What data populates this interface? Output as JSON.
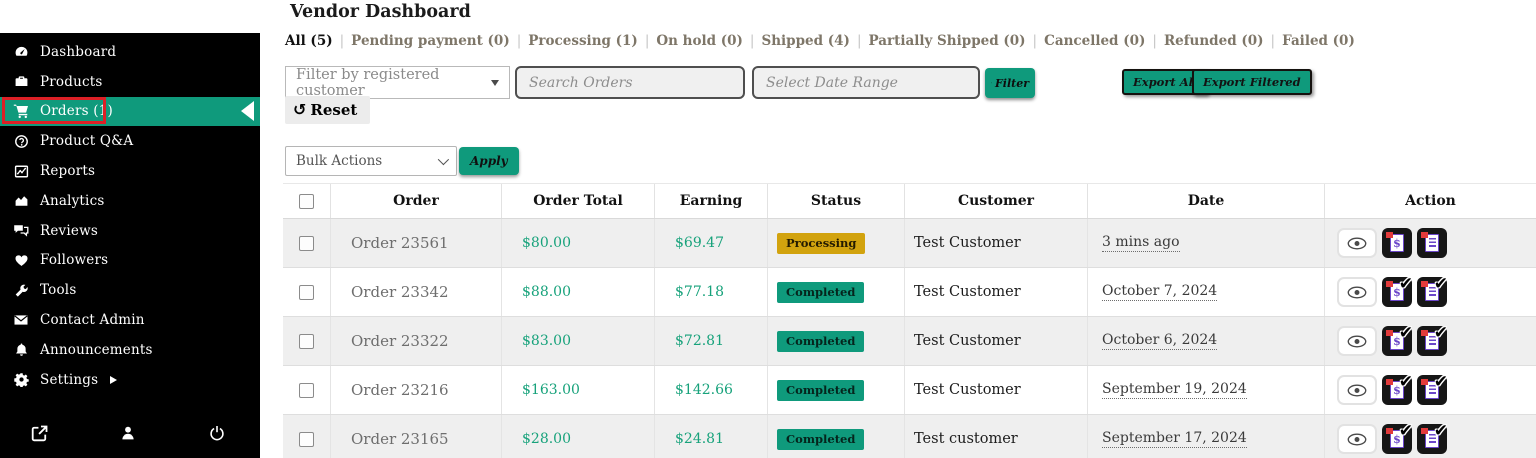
{
  "header": {
    "title": "Vendor Dashboard"
  },
  "colors": {
    "accent": "#0f9a7c",
    "highlight_red": "#dd2026",
    "processing_badge_bg": "#d2a30e",
    "completed_badge_bg": "#0f9a7c",
    "price_text": "#17a27b",
    "sidebar_bg": "#000000"
  },
  "sidebar": {
    "items": [
      {
        "label": "Dashboard",
        "icon": "dashboard-icon"
      },
      {
        "label": "Products",
        "icon": "products-icon"
      },
      {
        "label": "Orders (1)",
        "icon": "orders-cart-icon",
        "active": true
      },
      {
        "label": "Product Q&A",
        "icon": "question-circle-icon"
      },
      {
        "label": "Reports",
        "icon": "reports-chart-icon"
      },
      {
        "label": "Analytics",
        "icon": "analytics-area-icon"
      },
      {
        "label": "Reviews",
        "icon": "reviews-comments-icon"
      },
      {
        "label": "Followers",
        "icon": "heart-icon"
      },
      {
        "label": "Tools",
        "icon": "wrench-icon"
      },
      {
        "label": "Contact Admin",
        "icon": "envelope-icon"
      },
      {
        "label": "Announcements",
        "icon": "bell-icon"
      },
      {
        "label": "Settings",
        "icon": "gear-icon",
        "has_submenu": true
      }
    ],
    "footer_icons": [
      {
        "name": "external-link-icon"
      },
      {
        "name": "user-icon"
      },
      {
        "name": "power-icon"
      }
    ]
  },
  "tabs": [
    {
      "label": "All (5)",
      "active": true
    },
    {
      "label": "Pending payment (0)"
    },
    {
      "label": "Processing (1)"
    },
    {
      "label": "On hold (0)"
    },
    {
      "label": "Shipped (4)"
    },
    {
      "label": "Partially Shipped (0)"
    },
    {
      "label": "Cancelled (0)"
    },
    {
      "label": "Refunded (0)"
    },
    {
      "label": "Failed (0)"
    }
  ],
  "filters": {
    "customer_dropdown_value": "Filter by registered customer",
    "search_placeholder": "Search Orders",
    "date_placeholder": "Select Date Range",
    "filter_button": "Filter",
    "reset_button": "Reset",
    "export_all_button": "Export All",
    "export_filtered_button": "Export Filtered"
  },
  "bulk": {
    "dropdown_value": "Bulk Actions",
    "apply_button": "Apply"
  },
  "table": {
    "headers": [
      "Order",
      "Order Total",
      "Earning",
      "Status",
      "Customer",
      "Date",
      "Action"
    ],
    "action_icons": [
      "view-eye-icon",
      "pdf-invoice-icon",
      "pdf-packing-slip-icon"
    ],
    "rows": [
      {
        "order": "Order 23561",
        "total": "$80.00",
        "earning": "$69.47",
        "status": "Processing",
        "customer": "Test Customer",
        "date": "3 mins ago",
        "docs_checked": false
      },
      {
        "order": "Order 23342",
        "total": "$88.00",
        "earning": "$77.18",
        "status": "Completed",
        "customer": "Test Customer",
        "date": "October 7, 2024",
        "docs_checked": true
      },
      {
        "order": "Order 23322",
        "total": "$83.00",
        "earning": "$72.81",
        "status": "Completed",
        "customer": "Test Customer",
        "date": "October 6, 2024",
        "docs_checked": true
      },
      {
        "order": "Order 23216",
        "total": "$163.00",
        "earning": "$142.66",
        "status": "Completed",
        "customer": "Test Customer",
        "date": "September 19, 2024",
        "docs_checked": true
      },
      {
        "order": "Order 23165",
        "total": "$28.00",
        "earning": "$24.81",
        "status": "Completed",
        "customer": "Test customer",
        "date": "September 17, 2024",
        "docs_checked": true
      }
    ]
  }
}
